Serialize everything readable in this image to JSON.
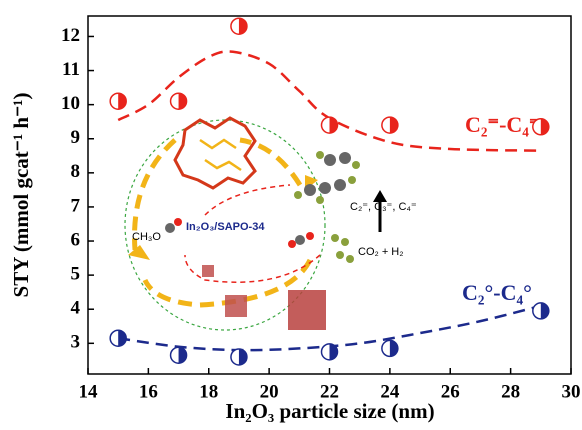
{
  "chart_data": {
    "type": "scatter",
    "xlabel": "In₂O₃ particle size (nm)",
    "ylabel": "STY (mmol gcat⁻¹ h⁻¹)",
    "xlim": [
      14,
      30
    ],
    "xticks": [
      14,
      16,
      18,
      20,
      22,
      24,
      26,
      28,
      30
    ],
    "ylim": [
      2.1,
      12.6
    ],
    "yticks": [
      3,
      4,
      5,
      6,
      7,
      8,
      9,
      10,
      11,
      12
    ],
    "series": [
      {
        "name": "C₂⁼-C₄⁼",
        "color": "#e8241c",
        "x": [
          15,
          17,
          19,
          22,
          24,
          29
        ],
        "values": [
          10.1,
          10.1,
          12.3,
          9.4,
          9.4,
          9.35
        ],
        "fit_x": [
          15,
          16,
          17,
          18,
          18.8,
          20,
          21,
          22,
          24,
          26,
          29
        ],
        "fit_values": [
          9.55,
          10.0,
          10.8,
          11.4,
          11.55,
          11.2,
          10.4,
          9.6,
          8.9,
          8.7,
          8.65
        ]
      },
      {
        "name": "C₂°-C₄°",
        "color": "#1c2a8c",
        "x": [
          15,
          17,
          19,
          22,
          24,
          29
        ],
        "values": [
          3.15,
          2.65,
          2.6,
          2.75,
          2.85,
          3.95
        ],
        "fit_x": [
          15,
          17,
          19,
          21,
          23,
          25,
          27,
          29
        ],
        "fit_values": [
          3.15,
          2.9,
          2.8,
          2.85,
          3.0,
          3.3,
          3.65,
          4.1
        ]
      }
    ],
    "inset_labels": [
      "In₂O₃/SAPO-34",
      "CH₃O",
      "C₂⁼, C₃⁼, C₄⁼",
      "CO₂ + H₂"
    ]
  }
}
